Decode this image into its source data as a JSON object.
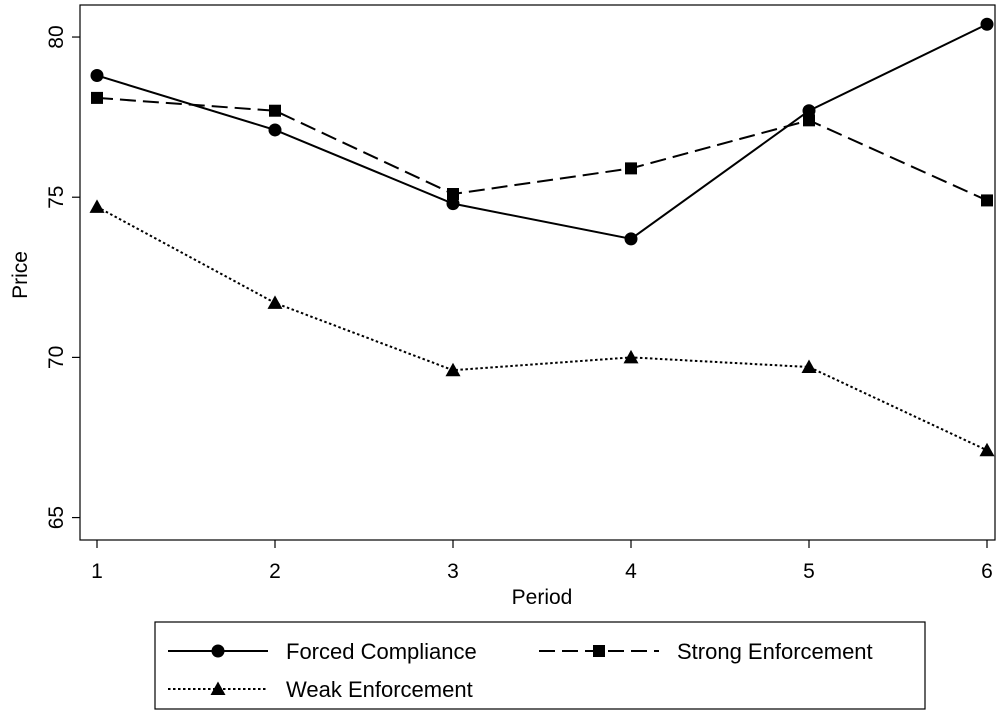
{
  "chart_data": {
    "type": "line",
    "xlabel": "Period",
    "ylabel": "Price",
    "x": [
      1,
      2,
      3,
      4,
      5,
      6
    ],
    "xticks": [
      "1",
      "2",
      "3",
      "4",
      "5",
      "6"
    ],
    "yticks": [
      "65",
      "70",
      "75",
      "80"
    ],
    "xlim": [
      1,
      6
    ],
    "ylim": [
      64.3,
      81.0
    ],
    "grid": false,
    "legend_position": "bottom",
    "series": [
      {
        "name": "Forced Compliance",
        "values": [
          78.8,
          77.1,
          74.8,
          73.7,
          77.7,
          80.4
        ],
        "marker": "circle",
        "line_style": "solid"
      },
      {
        "name": "Strong Enforcement",
        "values": [
          78.1,
          77.7,
          75.1,
          75.9,
          77.4,
          74.9
        ],
        "marker": "square",
        "line_style": "dashed"
      },
      {
        "name": "Weak Enforcement",
        "values": [
          74.7,
          71.7,
          69.6,
          70.0,
          69.7,
          67.1
        ],
        "marker": "triangle",
        "line_style": "dotted"
      }
    ]
  }
}
